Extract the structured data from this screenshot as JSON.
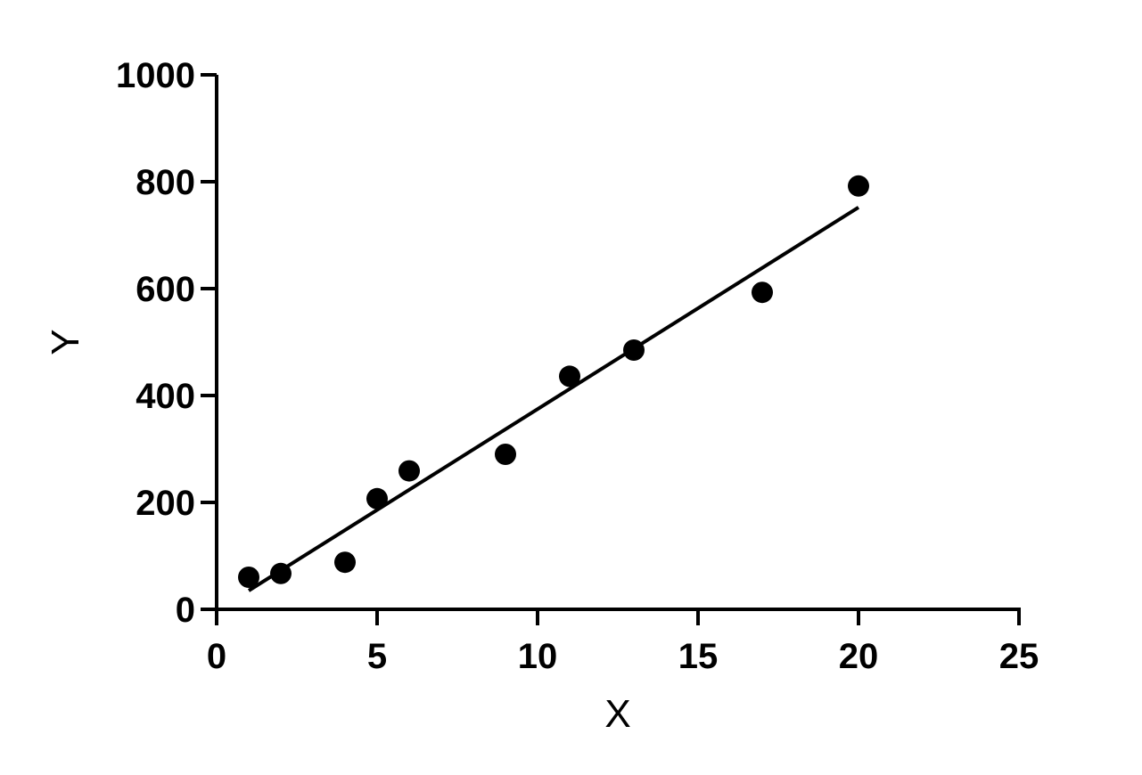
{
  "chart_data": {
    "type": "scatter",
    "title": "",
    "xlabel": "X",
    "ylabel": "Y",
    "xlim": [
      0,
      25
    ],
    "ylim": [
      0,
      1000
    ],
    "x_ticks": [
      0,
      5,
      10,
      15,
      20,
      25
    ],
    "y_ticks": [
      0,
      200,
      400,
      600,
      800,
      1000
    ],
    "grid": false,
    "series": [
      {
        "points": [
          {
            "x": 1,
            "y": 60
          },
          {
            "x": 2,
            "y": 67
          },
          {
            "x": 4,
            "y": 88
          },
          {
            "x": 5,
            "y": 207
          },
          {
            "x": 6,
            "y": 259
          },
          {
            "x": 9,
            "y": 290
          },
          {
            "x": 11,
            "y": 436
          },
          {
            "x": 13,
            "y": 485
          },
          {
            "x": 17,
            "y": 593
          },
          {
            "x": 20,
            "y": 792
          }
        ],
        "color": "#000000"
      }
    ],
    "fit_line": {
      "start": {
        "x": 1,
        "y": 35
      },
      "end": {
        "x": 20,
        "y": 752
      },
      "color": "#000000"
    }
  }
}
